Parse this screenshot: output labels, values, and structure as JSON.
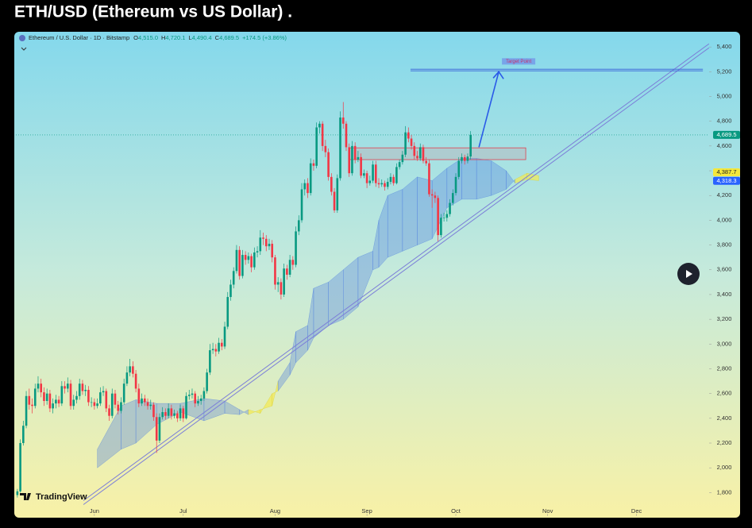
{
  "title": "ETH/USD (Ethereum vs US Dollar) .",
  "chart_data": {
    "type": "candlestick",
    "legend": {
      "symbol": "Ethereum / U.S. Dollar · 1D · Bitstamp",
      "fields": [
        {
          "letter": "O",
          "label": "4,515.0"
        },
        {
          "letter": "H",
          "label": "4,720.1"
        },
        {
          "letter": "L",
          "label": "4,490.4"
        },
        {
          "letter": "C",
          "label": "4,689.5"
        }
      ],
      "change": "+174.5 (+3.86%)"
    },
    "brand": "TradingView",
    "up_color": "#089981",
    "down_color": "#f23645",
    "xlim": [
      -0.5,
      233.5
    ],
    "xticks": [
      {
        "value": 26,
        "label": "Jun"
      },
      {
        "value": 56,
        "label": "Jul"
      },
      {
        "value": 87,
        "label": "Aug"
      },
      {
        "value": 118,
        "label": "Sep"
      },
      {
        "value": 148,
        "label": "Oct"
      },
      {
        "value": 179,
        "label": "Nov"
      },
      {
        "value": 209,
        "label": "Dec"
      }
    ],
    "ylim": [
      1610,
      5510
    ],
    "yticks": [
      {
        "value": 1800,
        "label": "1,800"
      },
      {
        "value": 2000,
        "label": "2,000"
      },
      {
        "value": 2200,
        "label": "2,200"
      },
      {
        "value": 2400,
        "label": "2,400"
      },
      {
        "value": 2600,
        "label": "2,600"
      },
      {
        "value": 2800,
        "label": "2,800"
      },
      {
        "value": 3000,
        "label": "3,000"
      },
      {
        "value": 3200,
        "label": "3,200"
      },
      {
        "value": 3400,
        "label": "3,400"
      },
      {
        "value": 3600,
        "label": "3,600"
      },
      {
        "value": 3800,
        "label": "3,800"
      },
      {
        "value": 4000,
        "label": "4,000"
      },
      {
        "value": 4200,
        "label": "4,200"
      },
      {
        "value": 4400,
        "label": "4,400"
      },
      {
        "value": 4600,
        "label": "4,600"
      },
      {
        "value": 4800,
        "label": "4,800"
      },
      {
        "value": 5000,
        "label": "5,000"
      },
      {
        "value": 5200,
        "label": "5,200"
      },
      {
        "value": 5400,
        "label": "5,400"
      }
    ],
    "price_labels": [
      {
        "value": 4689.5,
        "label": "4,689.5",
        "color": "#089981"
      },
      {
        "value": 4387.7,
        "label": "4,387.7",
        "color": "#f5e83c"
      },
      {
        "value": 4318.3,
        "label": "4,318.3",
        "color": "#2962ff"
      }
    ],
    "ohlc": [
      [
        1780,
        1830,
        1760,
        1810
      ],
      [
        1810,
        2230,
        1800,
        2200
      ],
      [
        2200,
        2380,
        2180,
        2340
      ],
      [
        2340,
        2620,
        2320,
        2580
      ],
      [
        2580,
        2640,
        2470,
        2510
      ],
      [
        2510,
        2560,
        2440,
        2500
      ],
      [
        2500,
        2680,
        2480,
        2640
      ],
      [
        2640,
        2740,
        2610,
        2680
      ],
      [
        2680,
        2720,
        2570,
        2610
      ],
      [
        2610,
        2650,
        2500,
        2540
      ],
      [
        2540,
        2640,
        2510,
        2600
      ],
      [
        2600,
        2630,
        2450,
        2480
      ],
      [
        2480,
        2560,
        2440,
        2520
      ],
      [
        2520,
        2590,
        2480,
        2550
      ],
      [
        2550,
        2580,
        2490,
        2520
      ],
      [
        2520,
        2700,
        2500,
        2660
      ],
      [
        2660,
        2700,
        2600,
        2640
      ],
      [
        2640,
        2730,
        2610,
        2680
      ],
      [
        2680,
        2710,
        2470,
        2500
      ],
      [
        2500,
        2590,
        2470,
        2550
      ],
      [
        2550,
        2620,
        2520,
        2580
      ],
      [
        2580,
        2720,
        2550,
        2680
      ],
      [
        2680,
        2710,
        2590,
        2620
      ],
      [
        2620,
        2670,
        2580,
        2630
      ],
      [
        2630,
        2660,
        2500,
        2530
      ],
      [
        2530,
        2570,
        2490,
        2530
      ],
      [
        2530,
        2560,
        2470,
        2500
      ],
      [
        2500,
        2560,
        2480,
        2520
      ],
      [
        2520,
        2650,
        2500,
        2610
      ],
      [
        2610,
        2660,
        2580,
        2620
      ],
      [
        2620,
        2640,
        2450,
        2480
      ],
      [
        2480,
        2510,
        2380,
        2420
      ],
      [
        2420,
        2640,
        2400,
        2600
      ],
      [
        2600,
        2630,
        2480,
        2510
      ],
      [
        2510,
        2540,
        2430,
        2460
      ],
      [
        2460,
        2570,
        2440,
        2530
      ],
      [
        2530,
        2720,
        2510,
        2680
      ],
      [
        2680,
        2820,
        2660,
        2770
      ],
      [
        2770,
        2880,
        2740,
        2820
      ],
      [
        2820,
        2860,
        2730,
        2760
      ],
      [
        2760,
        2790,
        2610,
        2640
      ],
      [
        2640,
        2680,
        2490,
        2520
      ],
      [
        2520,
        2600,
        2500,
        2560
      ],
      [
        2560,
        2590,
        2500,
        2530
      ],
      [
        2530,
        2560,
        2470,
        2500
      ],
      [
        2500,
        2550,
        2470,
        2510
      ],
      [
        2510,
        2530,
        2380,
        2410
      ],
      [
        2410,
        2440,
        2120,
        2220
      ],
      [
        2220,
        2440,
        2200,
        2410
      ],
      [
        2410,
        2490,
        2390,
        2450
      ],
      [
        2450,
        2480,
        2390,
        2420
      ],
      [
        2420,
        2520,
        2400,
        2480
      ],
      [
        2480,
        2510,
        2390,
        2420
      ],
      [
        2420,
        2470,
        2400,
        2440
      ],
      [
        2440,
        2460,
        2370,
        2400
      ],
      [
        2400,
        2510,
        2380,
        2480
      ],
      [
        2480,
        2500,
        2370,
        2400
      ],
      [
        2400,
        2610,
        2390,
        2580
      ],
      [
        2580,
        2630,
        2550,
        2590
      ],
      [
        2590,
        2640,
        2560,
        2600
      ],
      [
        2600,
        2620,
        2490,
        2520
      ],
      [
        2520,
        2580,
        2500,
        2540
      ],
      [
        2540,
        2590,
        2510,
        2560
      ],
      [
        2560,
        2650,
        2540,
        2620
      ],
      [
        2620,
        2800,
        2600,
        2770
      ],
      [
        2770,
        3000,
        2750,
        2950
      ],
      [
        2950,
        3010,
        2920,
        2960
      ],
      [
        2960,
        3000,
        2900,
        2940
      ],
      [
        2940,
        3050,
        2920,
        3010
      ],
      [
        3010,
        3040,
        2950,
        2980
      ],
      [
        2980,
        3180,
        2960,
        3140
      ],
      [
        3140,
        3420,
        3120,
        3380
      ],
      [
        3380,
        3520,
        3350,
        3480
      ],
      [
        3480,
        3620,
        3450,
        3590
      ],
      [
        3590,
        3800,
        3570,
        3760
      ],
      [
        3760,
        3790,
        3520,
        3550
      ],
      [
        3550,
        3760,
        3530,
        3720
      ],
      [
        3720,
        3750,
        3640,
        3680
      ],
      [
        3680,
        3740,
        3650,
        3710
      ],
      [
        3710,
        3730,
        3580,
        3620
      ],
      [
        3620,
        3780,
        3600,
        3740
      ],
      [
        3740,
        3790,
        3700,
        3750
      ],
      [
        3750,
        3920,
        3720,
        3860
      ],
      [
        3860,
        3900,
        3800,
        3850
      ],
      [
        3850,
        3880,
        3750,
        3790
      ],
      [
        3790,
        3850,
        3760,
        3810
      ],
      [
        3810,
        3840,
        3660,
        3700
      ],
      [
        3700,
        3720,
        3440,
        3480
      ],
      [
        3480,
        3540,
        3420,
        3500
      ],
      [
        3500,
        3530,
        3360,
        3400
      ],
      [
        3400,
        3650,
        3380,
        3610
      ],
      [
        3610,
        3640,
        3520,
        3560
      ],
      [
        3560,
        3720,
        3540,
        3680
      ],
      [
        3680,
        3710,
        3600,
        3640
      ],
      [
        3640,
        3950,
        3620,
        3910
      ],
      [
        3910,
        4040,
        3880,
        4000
      ],
      [
        4000,
        4300,
        3980,
        4250
      ],
      [
        4250,
        4330,
        4200,
        4300
      ],
      [
        4300,
        4340,
        4180,
        4220
      ],
      [
        4220,
        4500,
        4200,
        4460
      ],
      [
        4460,
        4490,
        4400,
        4440
      ],
      [
        4440,
        4790,
        4420,
        4750
      ],
      [
        4750,
        4800,
        4700,
        4780
      ],
      [
        4780,
        4800,
        4560,
        4600
      ],
      [
        4600,
        4650,
        4510,
        4550
      ],
      [
        4550,
        4580,
        4320,
        4350
      ],
      [
        4350,
        4380,
        4200,
        4230
      ],
      [
        4230,
        4260,
        4060,
        4080
      ],
      [
        4080,
        4370,
        4060,
        4340
      ],
      [
        4340,
        4880,
        4320,
        4830
      ],
      [
        4830,
        4955,
        4740,
        4780
      ],
      [
        4780,
        4800,
        4560,
        4590
      ],
      [
        4590,
        4620,
        4350,
        4380
      ],
      [
        4380,
        4640,
        4360,
        4600
      ],
      [
        4600,
        4630,
        4460,
        4490
      ],
      [
        4490,
        4560,
        4470,
        4510
      ],
      [
        4510,
        4540,
        4340,
        4360
      ],
      [
        4360,
        4410,
        4340,
        4380
      ],
      [
        4380,
        4400,
        4260,
        4300
      ],
      [
        4300,
        4360,
        4280,
        4320
      ],
      [
        4320,
        4480,
        4300,
        4450
      ],
      [
        4450,
        4480,
        4270,
        4300
      ],
      [
        4300,
        4340,
        4260,
        4290
      ],
      [
        4290,
        4330,
        4270,
        4300
      ],
      [
        4300,
        4320,
        4240,
        4270
      ],
      [
        4270,
        4340,
        4250,
        4310
      ],
      [
        4310,
        4380,
        4290,
        4350
      ],
      [
        4350,
        4370,
        4280,
        4300
      ],
      [
        4300,
        4460,
        4290,
        4430
      ],
      [
        4430,
        4490,
        4410,
        4470
      ],
      [
        4470,
        4560,
        4450,
        4530
      ],
      [
        4530,
        4760,
        4510,
        4710
      ],
      [
        4710,
        4750,
        4630,
        4660
      ],
      [
        4660,
        4690,
        4570,
        4600
      ],
      [
        4600,
        4630,
        4490,
        4520
      ],
      [
        4520,
        4560,
        4480,
        4500
      ],
      [
        4500,
        4620,
        4480,
        4590
      ],
      [
        4590,
        4610,
        4460,
        4480
      ],
      [
        4480,
        4510,
        4440,
        4460
      ],
      [
        4460,
        4490,
        4190,
        4210
      ],
      [
        4210,
        4250,
        4100,
        4200
      ],
      [
        4200,
        4230,
        4140,
        4180
      ],
      [
        4180,
        4200,
        3830,
        3880
      ],
      [
        3880,
        4050,
        3860,
        4020
      ],
      [
        4020,
        4060,
        3990,
        4020
      ],
      [
        4020,
        4080,
        3990,
        4050
      ],
      [
        4050,
        4170,
        4030,
        4140
      ],
      [
        4140,
        4250,
        4120,
        4220
      ],
      [
        4220,
        4380,
        4200,
        4350
      ],
      [
        4350,
        4510,
        4330,
        4480
      ],
      [
        4480,
        4540,
        4460,
        4510
      ],
      [
        4510,
        4530,
        4450,
        4480
      ],
      [
        4480,
        4540,
        4460,
        4515
      ],
      [
        4515,
        4720.1,
        4490.4,
        4689.5
      ]
    ],
    "cloud": {
      "x": [
        27,
        35,
        40,
        47,
        55,
        63,
        70,
        75,
        78,
        82,
        86,
        88,
        92,
        94,
        98,
        100,
        105,
        110,
        115,
        120,
        122,
        125,
        130,
        135,
        140,
        145,
        150,
        155,
        160,
        165,
        168,
        172,
        176
      ],
      "span_a": [
        2150,
        2500,
        2550,
        2520,
        2520,
        2560,
        2540,
        2470,
        2430,
        2470,
        2500,
        2700,
        2850,
        3100,
        3150,
        3450,
        3500,
        3600,
        3700,
        3750,
        4000,
        4200,
        4250,
        4350,
        4320,
        4420,
        4500,
        4500,
        4480,
        4400,
        4300,
        4330,
        4320
      ],
      "span_b": [
        2000,
        2150,
        2200,
        2350,
        2450,
        2380,
        2440,
        2430,
        2470,
        2440,
        2600,
        2620,
        2750,
        2850,
        2950,
        3050,
        3150,
        3200,
        3300,
        3600,
        3620,
        3700,
        3750,
        3800,
        3850,
        4100,
        4170,
        4170,
        4200,
        4250,
        4330,
        4380,
        4360
      ],
      "above_color": "#4f7fe0",
      "below_color": "#f3ea50"
    },
    "annotations": {
      "trendline": {
        "x": [
          22.3,
          233.5
        ],
        "y": [
          1735,
          5426
        ]
      },
      "zone": {
        "x": [
          112,
          171.6
        ],
        "y": [
          4490,
          4585
        ]
      },
      "arrow": {
        "x": [
          155.8,
          162.5
        ],
        "y": [
          4590,
          5200
        ]
      },
      "target": {
        "label": "Target Point",
        "x": [
          132.7,
          231.4
        ],
        "y": 5220
      }
    }
  }
}
